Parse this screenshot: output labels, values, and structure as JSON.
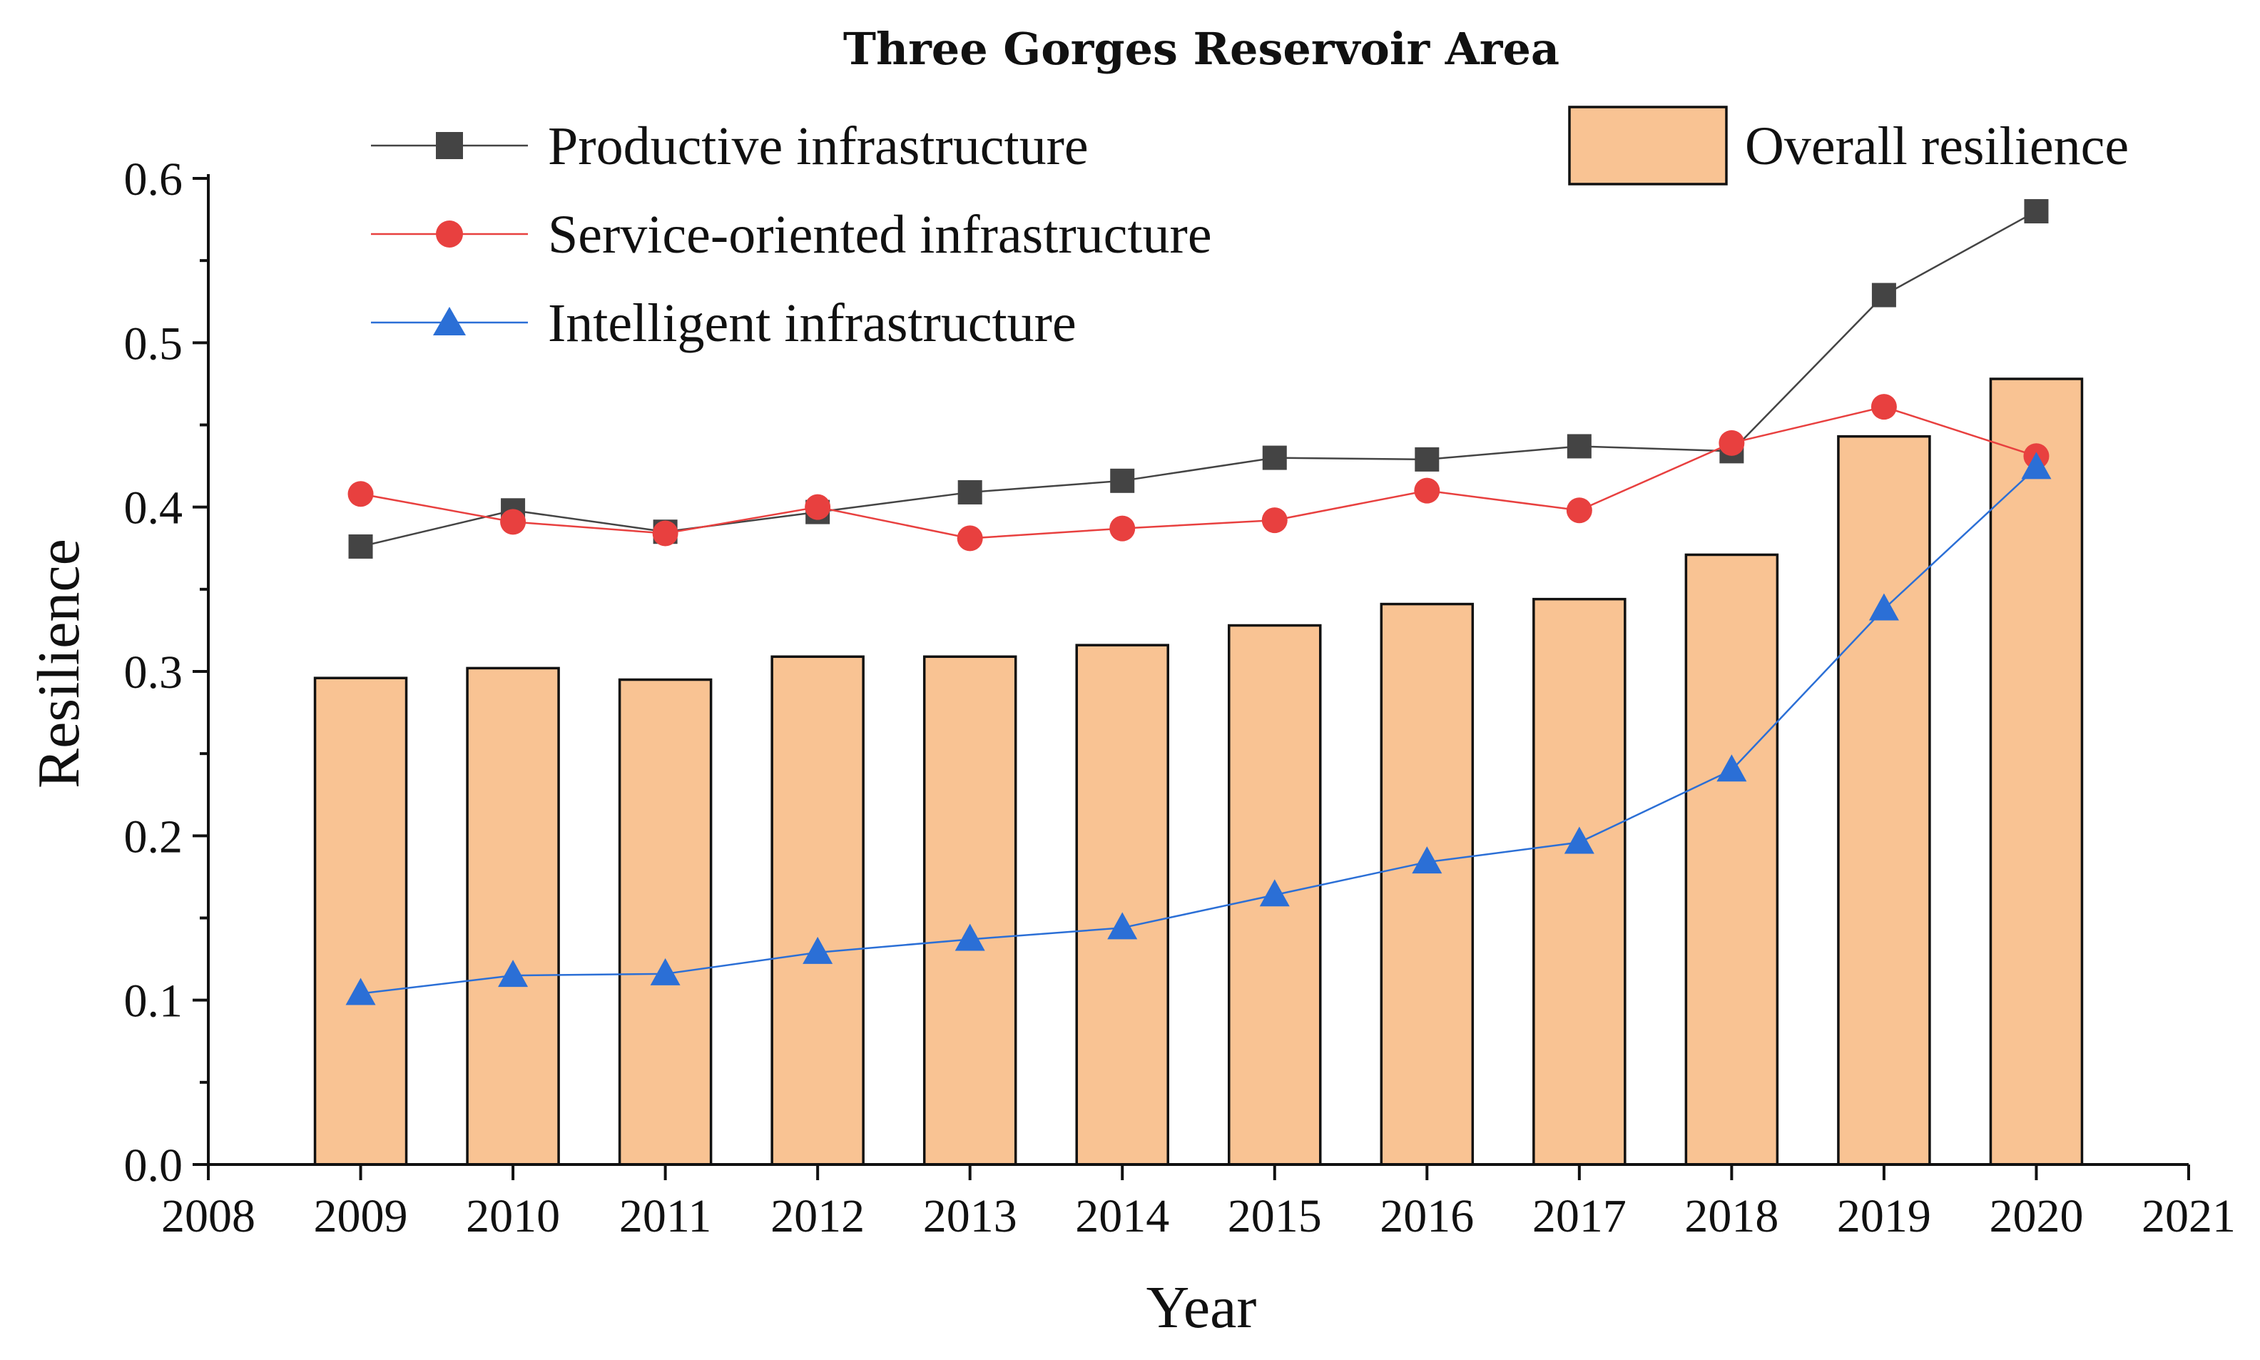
{
  "chart_data": {
    "type": "bar",
    "title": "Three Gorges Reservoir Area",
    "xlabel": "Year",
    "ylabel": "Resilience",
    "xlim": [
      2008,
      2021
    ],
    "ylim": [
      0.0,
      0.6
    ],
    "x_ticks": [
      "2008",
      "2009",
      "2010",
      "2011",
      "2012",
      "2013",
      "2014",
      "2015",
      "2016",
      "2017",
      "2018",
      "2019",
      "2020",
      "2021"
    ],
    "y_ticks": [
      "0.0",
      "0.1",
      "0.2",
      "0.3",
      "0.4",
      "0.5",
      "0.6"
    ],
    "categories": [
      2009,
      2010,
      2011,
      2012,
      2013,
      2014,
      2015,
      2016,
      2017,
      2018,
      2019,
      2020
    ],
    "bar_series": {
      "name": "Overall resilience",
      "color": "#f9c393",
      "values": [
        0.296,
        0.302,
        0.295,
        0.309,
        0.309,
        0.316,
        0.328,
        0.341,
        0.344,
        0.371,
        0.443,
        0.478
      ]
    },
    "series": [
      {
        "name": "Productive infrastructure",
        "color": "#444444",
        "marker": "square",
        "values": [
          0.376,
          0.398,
          0.385,
          0.397,
          0.409,
          0.416,
          0.43,
          0.429,
          0.437,
          0.434,
          0.529,
          0.58
        ]
      },
      {
        "name": "Service-oriented infrastructure",
        "color": "#e8403f",
        "marker": "circle",
        "values": [
          0.408,
          0.391,
          0.384,
          0.4,
          0.381,
          0.387,
          0.392,
          0.41,
          0.398,
          0.439,
          0.461,
          0.431
        ]
      },
      {
        "name": "Intelligent infrastructure",
        "color": "#2b6fd6",
        "marker": "triangle",
        "values": [
          0.104,
          0.115,
          0.116,
          0.129,
          0.137,
          0.144,
          0.164,
          0.184,
          0.196,
          0.24,
          0.338,
          0.424
        ]
      }
    ],
    "legend_position": "top"
  }
}
